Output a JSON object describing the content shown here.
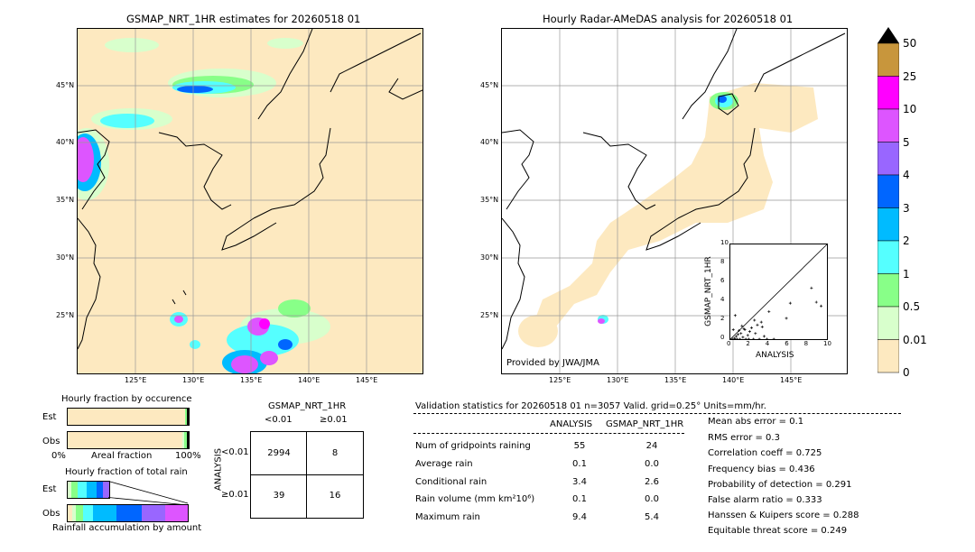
{
  "left_map": {
    "title": "GSMAP_NRT_1HR estimates for 20260518 01",
    "lat_labels": [
      "45°N",
      "40°N",
      "35°N",
      "30°N",
      "25°N"
    ],
    "lon_labels": [
      "125°E",
      "130°E",
      "135°E",
      "140°E",
      "145°E"
    ]
  },
  "right_map": {
    "title": "Hourly Radar-AMeDAS analysis for 20260518 01",
    "lat_labels": [
      "45°N",
      "40°N",
      "35°N",
      "30°N",
      "25°N"
    ],
    "lon_labels": [
      "125°E",
      "130°E",
      "135°E",
      "140°E",
      "145°E"
    ],
    "credit": "Provided by JWA/JMA"
  },
  "colorbar": {
    "labels": [
      "50",
      "25",
      "10",
      "5",
      "4",
      "3",
      "2",
      "1",
      "0.5",
      "0.01",
      "0"
    ],
    "colors": [
      "#c8963c",
      "#ff00ff",
      "#dd55ff",
      "#9966ff",
      "#0066ff",
      "#00bbff",
      "#55ffff",
      "#88ff88",
      "#d8ffcc",
      "#fde9c0"
    ],
    "top_color": "#000000"
  },
  "occurrence": {
    "title": "Hourly fraction by occurence",
    "row_labels": [
      "Est",
      "Obs"
    ],
    "axis_left": "0%",
    "axis_mid": "Areal fraction",
    "axis_right": "100%"
  },
  "total_rain": {
    "title": "Hourly fraction of total rain",
    "row_labels": [
      "Est",
      "Obs"
    ],
    "axis_label": "Rainfall accumulation by amount"
  },
  "contingency": {
    "title": "GSMAP_NRT_1HR",
    "col_labels": [
      "<0.01",
      "≥0.01"
    ],
    "row_axis": "ANALYSIS",
    "row_labels": [
      "<0.01",
      "≥0.01"
    ],
    "cells": [
      [
        "2994",
        "8"
      ],
      [
        "39",
        "16"
      ]
    ]
  },
  "validation": {
    "header": "Validation statistics for 20260518 01  n=3057 Valid. grid=0.25° Units=mm/hr.",
    "col_analysis": "ANALYSIS",
    "col_gsmap": "GSMAP_NRT_1HR",
    "rows": [
      {
        "label": "Num of gridpoints raining",
        "analysis": "55",
        "gsmap": "24"
      },
      {
        "label": "Average rain",
        "analysis": "0.1",
        "gsmap": "0.0"
      },
      {
        "label": "Conditional rain",
        "analysis": "3.4",
        "gsmap": "2.6"
      },
      {
        "label": "Rain volume (mm km²10⁶)",
        "analysis": "0.1",
        "gsmap": "0.0"
      },
      {
        "label": "Maximum rain",
        "analysis": "9.4",
        "gsmap": "5.4"
      }
    ],
    "scores": [
      "Mean abs error =    0.1",
      "RMS error =    0.3",
      "Correlation coeff =  0.725",
      "Frequency bias =  0.436",
      "Probability of detection =  0.291",
      "False alarm ratio =  0.333",
      "Hanssen & Kuipers score =  0.288",
      "Equitable threat score =  0.249"
    ]
  },
  "chart_data": {
    "type": "scatter",
    "title": "",
    "xlabel": "ANALYSIS",
    "ylabel": "GSMAP_NRT_1HR",
    "xlim": [
      0,
      10
    ],
    "ylim": [
      0,
      10
    ],
    "x_ticks": [
      "0",
      "2",
      "4",
      "6",
      "8",
      "10"
    ],
    "y_ticks": [
      "0",
      "2",
      "4",
      "6",
      "8",
      "10"
    ],
    "points": [
      [
        0.2,
        0.0
      ],
      [
        0.4,
        0.1
      ],
      [
        0.5,
        0.0
      ],
      [
        0.6,
        0.3
      ],
      [
        0.8,
        0.5
      ],
      [
        1.0,
        0.0
      ],
      [
        1.1,
        0.6
      ],
      [
        1.3,
        0.2
      ],
      [
        1.5,
        1.0
      ],
      [
        1.6,
        0.0
      ],
      [
        1.8,
        0.4
      ],
      [
        2.0,
        0.8
      ],
      [
        2.2,
        1.2
      ],
      [
        2.4,
        0.0
      ],
      [
        2.6,
        0.6
      ],
      [
        2.8,
        1.5
      ],
      [
        3.0,
        0.0
      ],
      [
        3.2,
        1.8
      ],
      [
        3.5,
        0.3
      ],
      [
        3.8,
        0.0
      ],
      [
        4.0,
        2.9
      ],
      [
        0.5,
        2.5
      ],
      [
        1.2,
        1.4
      ],
      [
        2.5,
        2.0
      ],
      [
        5.8,
        2.2
      ],
      [
        6.2,
        3.8
      ],
      [
        8.4,
        5.4
      ],
      [
        8.9,
        3.9
      ],
      [
        9.4,
        3.5
      ],
      [
        0.3,
        1.0
      ],
      [
        0.9,
        0.9
      ],
      [
        1.4,
        1.1
      ],
      [
        3.3,
        1.3
      ],
      [
        1.9,
        0.0
      ],
      [
        0.7,
        0.0
      ],
      [
        4.5,
        0.0
      ]
    ]
  }
}
